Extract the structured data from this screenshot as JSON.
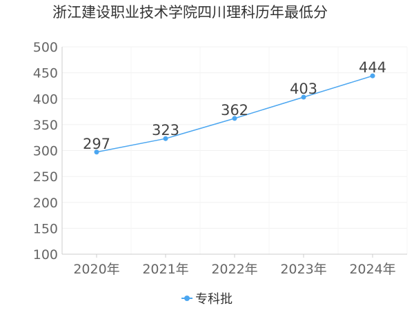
{
  "chart_data": {
    "type": "line",
    "title": "浙江建设职业技术学院四川理科历年最低分",
    "categories": [
      "2020年",
      "2021年",
      "2022年",
      "2023年",
      "2024年"
    ],
    "series": [
      {
        "name": "专科批",
        "values": [
          297,
          323,
          362,
          403,
          444
        ]
      }
    ],
    "ylim": [
      100,
      500
    ],
    "yticks": [
      100,
      150,
      200,
      250,
      300,
      350,
      400,
      450,
      500
    ],
    "grid": true,
    "legend_position": "bottom",
    "color": "#4ba6f0"
  }
}
